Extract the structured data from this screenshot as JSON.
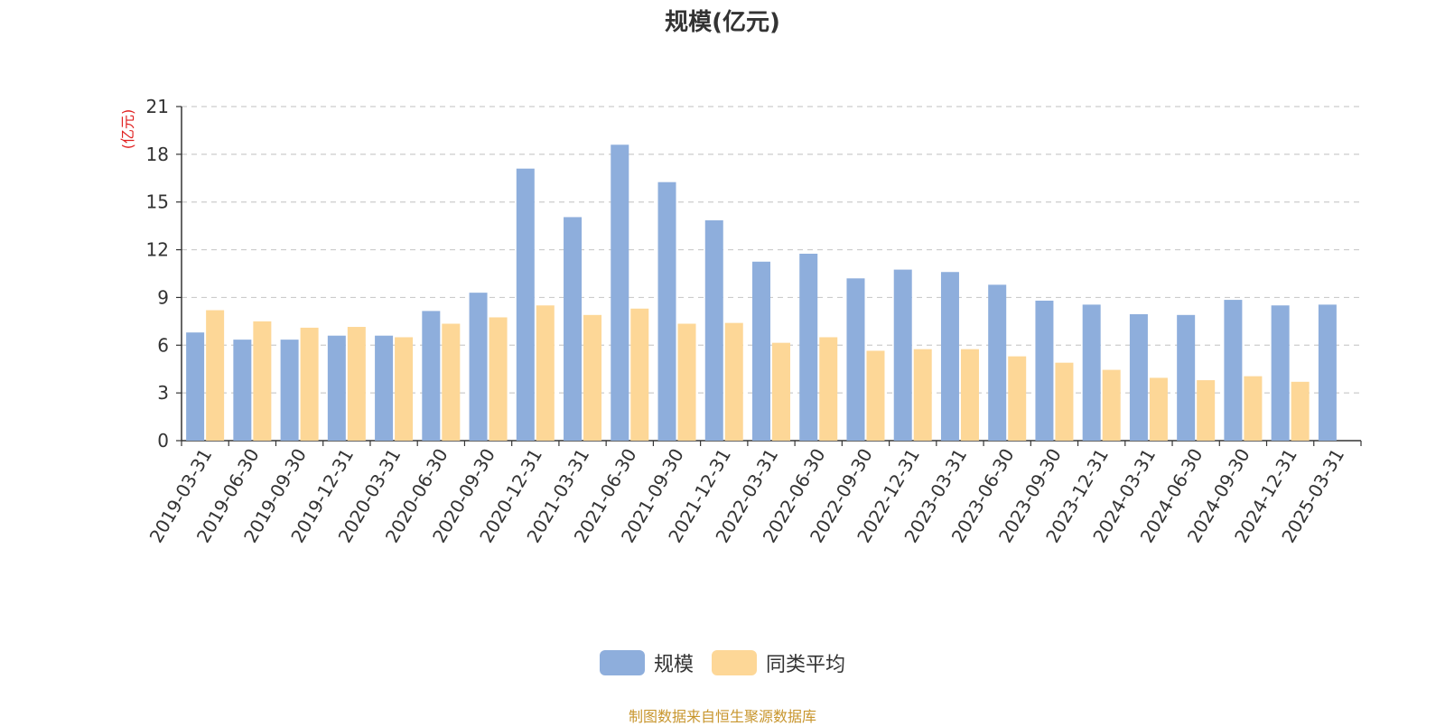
{
  "chart_data": {
    "type": "bar",
    "title": "规模(亿元)",
    "ylabel": "(亿元)",
    "ylim": [
      0,
      21
    ],
    "yticks": [
      0,
      3,
      6,
      9,
      12,
      15,
      18,
      21
    ],
    "grid": true,
    "legend_position": "bottom-center",
    "categories": [
      "2019-03-31",
      "2019-06-30",
      "2019-09-30",
      "2019-12-31",
      "2020-03-31",
      "2020-06-30",
      "2020-09-30",
      "2020-12-31",
      "2021-03-31",
      "2021-06-30",
      "2021-09-30",
      "2021-12-31",
      "2022-03-31",
      "2022-06-30",
      "2022-09-30",
      "2022-12-31",
      "2023-03-31",
      "2023-06-30",
      "2023-09-30",
      "2023-12-31",
      "2024-03-31",
      "2024-06-30",
      "2024-09-30",
      "2024-12-31",
      "2025-03-31"
    ],
    "series": [
      {
        "name": "规模",
        "color": "#8eaedc",
        "values": [
          6.8,
          6.35,
          6.35,
          6.6,
          6.6,
          8.15,
          9.3,
          17.1,
          14.05,
          18.6,
          16.25,
          13.85,
          11.25,
          11.75,
          10.2,
          10.75,
          10.6,
          9.8,
          8.8,
          8.55,
          7.95,
          7.9,
          8.85,
          8.5,
          8.55
        ]
      },
      {
        "name": "同类平均",
        "color": "#fdd797",
        "values": [
          8.2,
          7.5,
          7.1,
          7.15,
          6.5,
          7.35,
          7.75,
          8.5,
          7.9,
          8.3,
          7.35,
          7.4,
          6.15,
          6.5,
          5.65,
          5.75,
          5.75,
          5.3,
          4.9,
          4.45,
          3.95,
          3.8,
          4.05,
          3.7,
          null
        ]
      }
    ]
  },
  "footer": {
    "source_note": "制图数据来自恒生聚源数据库"
  }
}
